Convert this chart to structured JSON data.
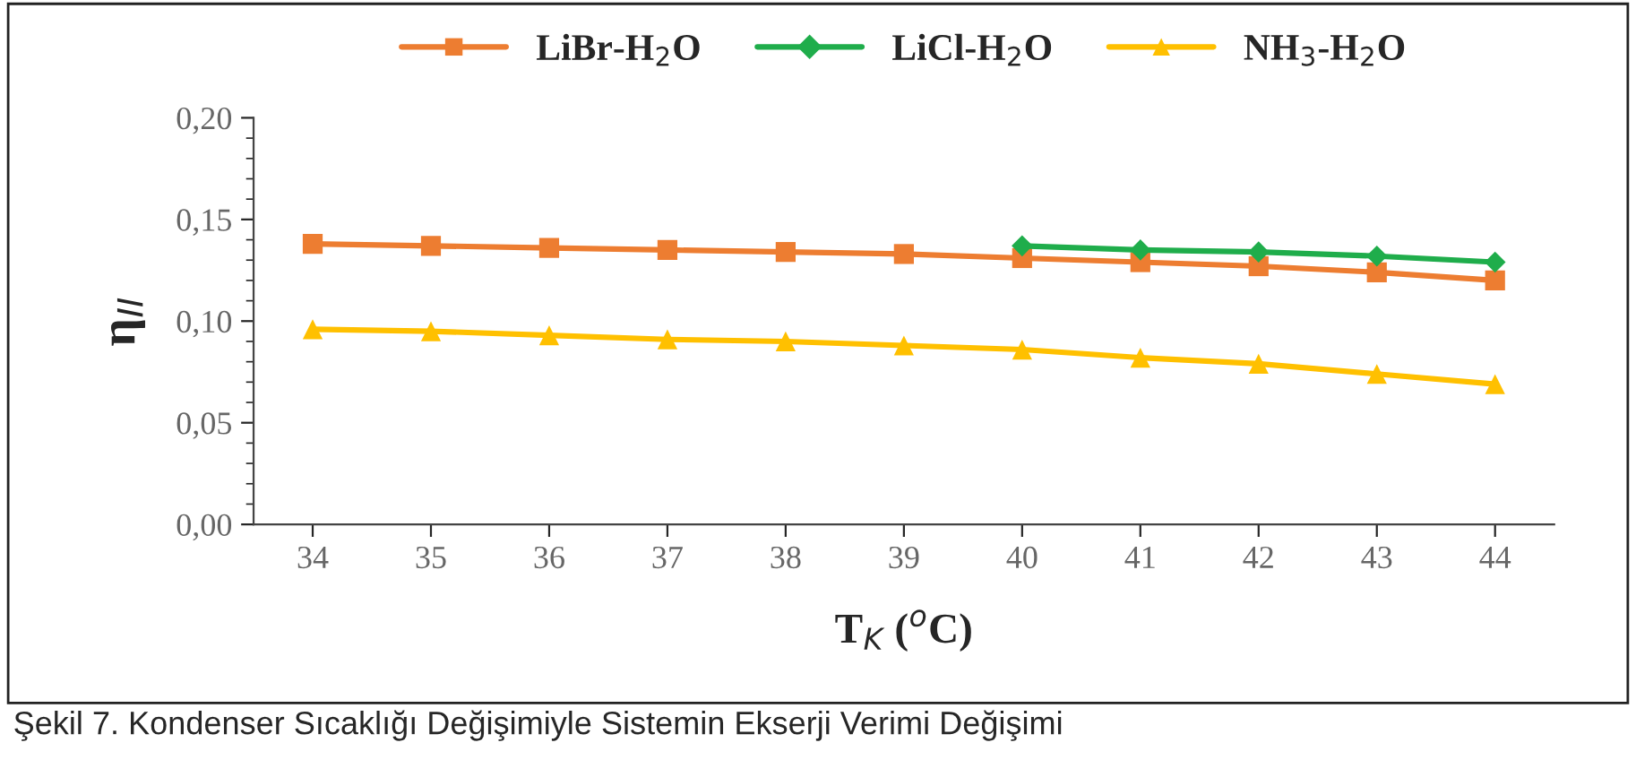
{
  "chart_data": {
    "type": "line",
    "categories": [
      "34",
      "35",
      "36",
      "37",
      "38",
      "39",
      "40",
      "41",
      "42",
      "43",
      "44"
    ],
    "series": [
      {
        "name": "LiBr-H$_{2}$O",
        "color": "#ed7d31",
        "marker": "square",
        "values": [
          0.138,
          0.137,
          0.136,
          0.135,
          0.134,
          0.133,
          0.131,
          0.129,
          0.127,
          0.124,
          0.12
        ]
      },
      {
        "name": "LiCl-H$_{2}$O",
        "color": "#1fad4b",
        "marker": "diamond",
        "values": [
          null,
          null,
          null,
          null,
          null,
          null,
          0.137,
          0.135,
          0.134,
          0.132,
          0.129
        ]
      },
      {
        "name": "NH$_{3}$-H$_{2}$O",
        "color": "#ffc000",
        "marker": "triangle",
        "values": [
          0.096,
          0.095,
          0.093,
          0.091,
          0.09,
          0.088,
          0.086,
          0.082,
          0.079,
          0.074,
          0.069
        ]
      }
    ],
    "xlabel": "T$_{K}$ ($^{o}$C)",
    "ylabel": "η$_{II}$",
    "ylim": [
      0,
      0.2
    ],
    "yticks": [
      {
        "value": 0,
        "label": "0,00"
      },
      {
        "value": 0.05,
        "label": "0,05"
      },
      {
        "value": 0.1,
        "label": "0,10"
      },
      {
        "value": 0.15,
        "label": "0,15"
      },
      {
        "value": 0.2,
        "label": "0,20"
      }
    ],
    "legend": "top",
    "grid": false,
    "line_style": "solid",
    "annotations": [
      "Şekil 7. Kondenser Sıcaklığı Değişimiyle Sistemin Ekserji Verimi Değişimi"
    ]
  }
}
